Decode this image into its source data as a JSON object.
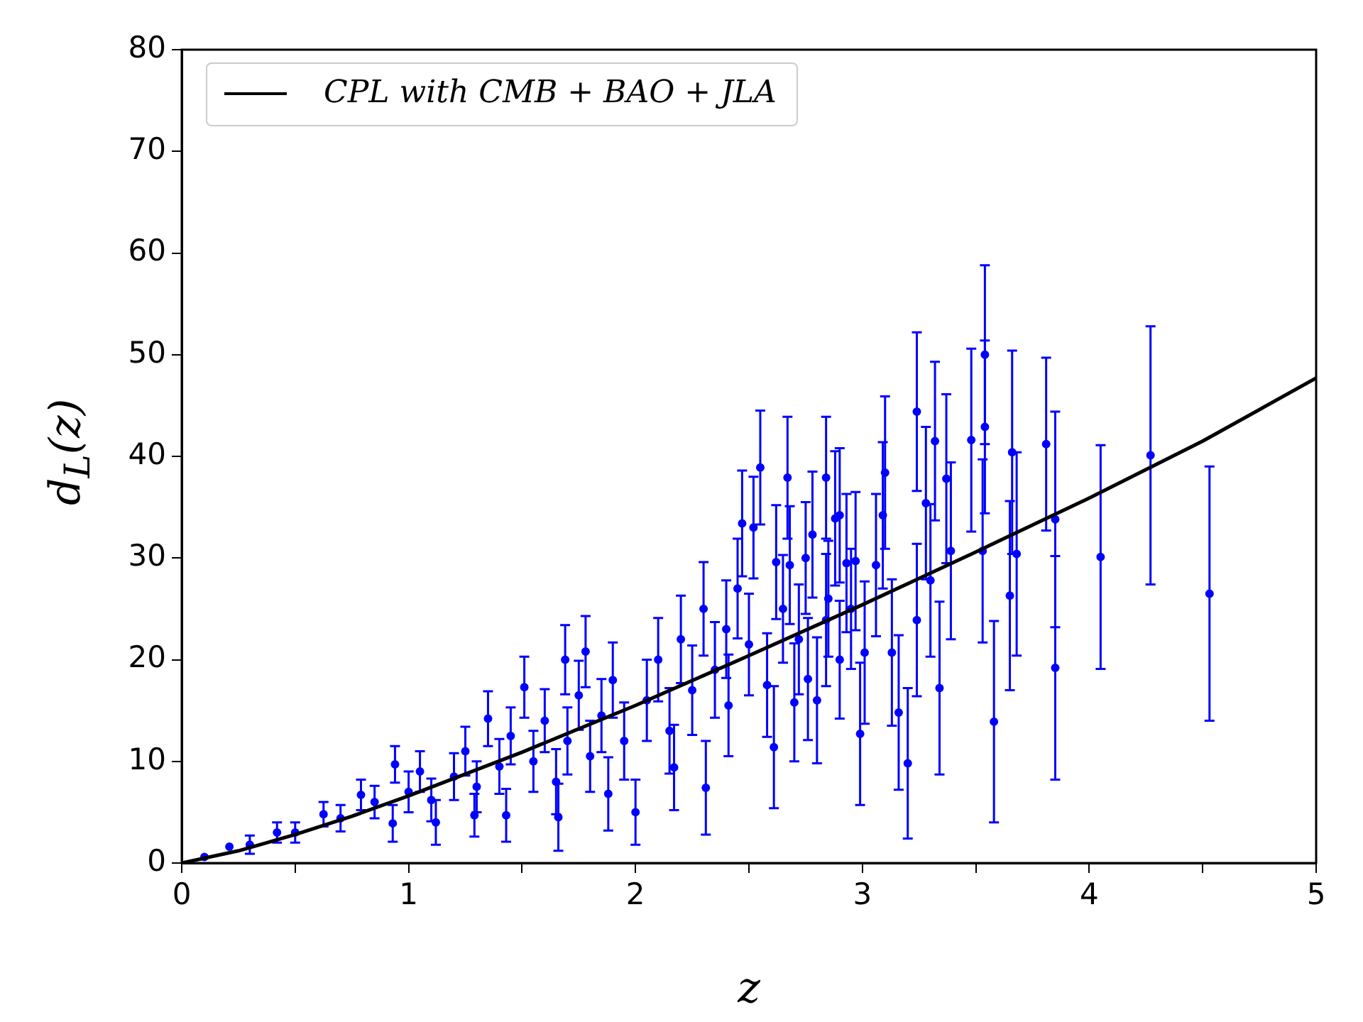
{
  "chart_data": {
    "type": "scatter",
    "xlabel": "z",
    "ylabel": "d$_{L}$(z)",
    "xlim": [
      0,
      5
    ],
    "ylim": [
      0,
      80
    ],
    "xticks": [
      0,
      1,
      2,
      3,
      4,
      5
    ],
    "yticks": [
      0,
      10,
      20,
      30,
      40,
      50,
      60,
      70,
      80
    ],
    "grid": false,
    "legend": "top left",
    "series": [
      {
        "name": "CPL with CMB + BAO + JLA",
        "type": "line",
        "color": "#000000",
        "marker": "none",
        "line_style": "solid",
        "x": [
          0,
          0.25,
          0.5,
          0.75,
          1,
          1.5,
          2,
          2.5,
          3,
          3.5,
          4,
          4.5,
          5
        ],
        "values": [
          0,
          1.2,
          2.8,
          4.6,
          6.6,
          10.9,
          15.5,
          20.4,
          25.4,
          30.6,
          35.9,
          41.5,
          47.7
        ]
      },
      {
        "color": "#0000ff",
        "marker": "circle",
        "x": [
          4.53,
          4.27,
          4.05,
          3.85,
          3.85,
          3.81,
          3.68,
          3.66,
          3.65,
          3.58,
          3.53,
          3.54,
          3.54,
          3.48,
          3.39,
          3.37,
          3.34,
          3.32,
          3.24,
          3.2,
          3.16,
          3.28,
          3.3,
          3.24,
          3.13,
          3.1,
          3.09,
          3.06,
          2.99,
          3.01,
          2.97,
          2.93,
          2.9,
          2.88,
          2.84,
          2.84,
          2.8,
          2.78,
          2.76,
          2.7,
          2.68,
          2.67,
          2.62,
          2.61,
          2.55,
          2.47,
          2.41,
          2.31,
          2.17,
          2.0,
          1.51,
          1.78,
          1.69,
          0.94,
          1.29,
          1.43,
          1.66,
          1.88,
          0.93,
          1.12,
          1.35,
          0.79,
          0.625,
          0.42,
          0.21,
          0.1,
          0.3,
          0.5,
          0.7,
          0.85,
          1.0,
          1.05,
          1.1,
          1.2,
          1.25,
          1.3,
          1.4,
          1.45,
          1.55,
          1.6,
          1.65,
          1.7,
          1.75,
          1.8,
          1.85,
          1.9,
          1.95,
          2.05,
          2.1,
          2.15,
          2.2,
          2.25,
          2.3,
          2.35,
          2.4,
          2.45,
          2.5,
          2.52,
          2.58,
          2.65,
          2.72,
          2.75,
          2.85,
          2.9,
          2.95
        ],
        "values": [
          26.5,
          40.1,
          30.1,
          33.8,
          19.2,
          41.2,
          30.4,
          40.4,
          26.3,
          13.9,
          30.7,
          50.0,
          42.9,
          41.6,
          30.7,
          37.8,
          17.2,
          41.5,
          44.4,
          9.8,
          14.8,
          35.4,
          27.8,
          23.9,
          20.7,
          38.4,
          34.2,
          29.3,
          12.7,
          20.7,
          29.7,
          29.5,
          34.2,
          33.9,
          37.9,
          23.9,
          16.0,
          32.3,
          18.1,
          15.8,
          29.3,
          37.9,
          29.6,
          11.4,
          38.9,
          33.4,
          15.5,
          7.4,
          9.4,
          5.0,
          17.3,
          20.8,
          20.0,
          9.7,
          4.7,
          4.7,
          4.5,
          6.8,
          3.9,
          4.0,
          14.2,
          6.7,
          4.8,
          3.0,
          1.6,
          0.6,
          1.8,
          3.0,
          4.4,
          6.0,
          7.0,
          9.0,
          6.2,
          8.5,
          11.0,
          7.5,
          9.5,
          12.5,
          10.0,
          14.0,
          8.0,
          12.0,
          16.5,
          10.5,
          14.5,
          18.0,
          12.0,
          16.0,
          20.0,
          13.0,
          22.0,
          17.0,
          25.0,
          19.0,
          23.0,
          27.0,
          21.5,
          33.0,
          17.5,
          25.0,
          22.0,
          30.0,
          26.0,
          20.0,
          25.0
        ],
        "errors": [
          12.5,
          12.7,
          11,
          10.6,
          11,
          8.5,
          10,
          10,
          9.3,
          9.9,
          9,
          8.8,
          8.5,
          9,
          8.7,
          8.3,
          8.5,
          7.8,
          7.8,
          7.4,
          7.6,
          7.5,
          7.5,
          7.5,
          7.2,
          7.5,
          7.2,
          7,
          7,
          7,
          6.8,
          6.8,
          6.6,
          6.6,
          6,
          6.5,
          6.2,
          6.2,
          6,
          5.8,
          5.8,
          6,
          5.6,
          6,
          5.6,
          5.2,
          5,
          4.6,
          4.2,
          3.2,
          3,
          3.5,
          3.4,
          1.8,
          2.1,
          2.6,
          3.3,
          3.6,
          1.8,
          2.2,
          2.7,
          1.5,
          1.2,
          1.0,
          null,
          null,
          0.9,
          1,
          1.3,
          1.6,
          2,
          2,
          2.1,
          2.3,
          2.4,
          2.5,
          2.7,
          2.8,
          3,
          3.1,
          3.2,
          3.3,
          3.4,
          3.5,
          3.6,
          3.7,
          3.8,
          4,
          4.1,
          4.2,
          4.3,
          4.4,
          4.6,
          4.7,
          4.8,
          4.9,
          5,
          5,
          5.1,
          5.3,
          5.4,
          5.5,
          5.7,
          5.8,
          5.9
        ]
      }
    ]
  }
}
